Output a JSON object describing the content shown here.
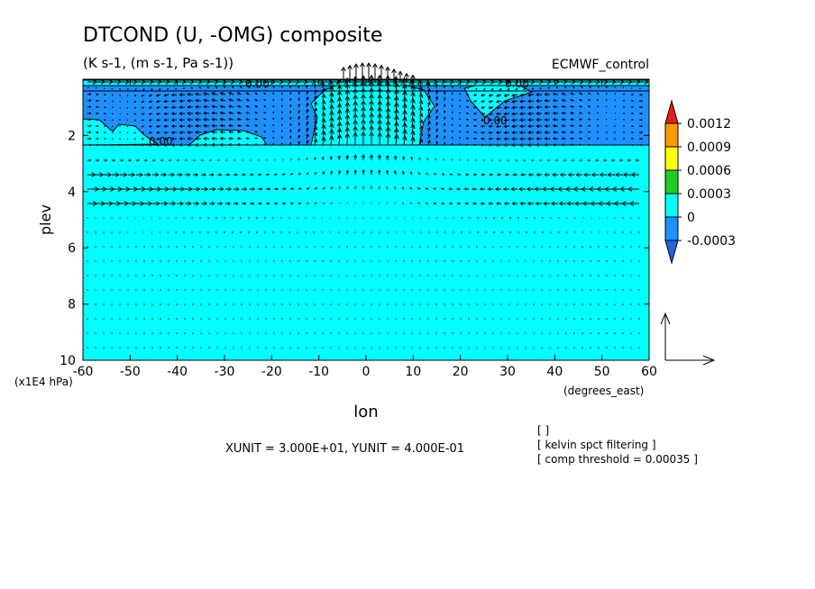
{
  "chart_data": {
    "type": "heatmap",
    "title": "DTCOND (U, -OMG) composite",
    "subtitle": "(K s-1, (m s-1, Pa s-1))",
    "dataset_label": "ECMWF_control",
    "xlabel": "lon",
    "ylabel": "plev",
    "x_unit_label": "(degrees_east)",
    "y_unit_label": "(x1E4 hPa)",
    "xlim": [
      -60,
      60
    ],
    "ylim": [
      10,
      0
    ],
    "x_ticks": [
      "-60",
      "-50",
      "-40",
      "-30",
      "-20",
      "-10",
      "0",
      "10",
      "20",
      "30",
      "40",
      "50",
      "60"
    ],
    "y_ticks": [
      "2",
      "4",
      "6",
      "8",
      "10"
    ],
    "color_levels": [
      "0.0012",
      "0.0009",
      "0.0006",
      "0.0003",
      "0",
      "-0.0003"
    ],
    "colors": {
      "above_0.0012": "#e61e1e",
      "0.0009_to_0.0012": "#ff9900",
      "0.0006_to_0.0009": "#ffff00",
      "0.0003_to_0.0006": "#22cc22",
      "0_to_0.0003": "#00ffff",
      "-0.0003_to_0": "#1e90ff",
      "below_-0.0003": "#1e64e6"
    },
    "contour_labels": [
      "0.00",
      "0.00",
      "0.00",
      "0.00"
    ],
    "vector_units": "XUNIT = 3.000E+01, YUNIT = 4.000E-01",
    "notes": [
      "[  ]",
      "[ kelvin spct filtering ]",
      "[ comp threshold = 0.00035 ]"
    ],
    "description_regions": {
      "upper_layer_plev": [
        0,
        2.5
      ],
      "upper_layer_value": "-0.0003 to 0",
      "lower_layer_value": "0 to 0.0003",
      "convective_center_lon": 0
    }
  }
}
